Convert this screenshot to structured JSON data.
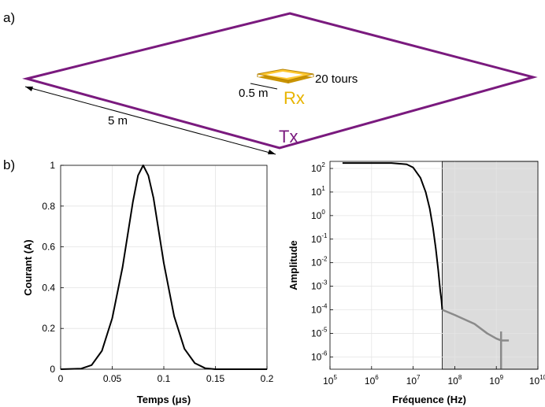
{
  "panel_a": {
    "label": "a)",
    "dimension_label": "5 m",
    "rx": {
      "side_label": "0.5 m",
      "turns_label": "20 tours",
      "name": "Rx"
    },
    "tx": {
      "name": "Tx"
    },
    "colors": {
      "tx_loop": "#7a1a7e",
      "rx_loop": "#e8b400"
    }
  },
  "panel_b": {
    "label": "b)"
  },
  "chart_data": [
    {
      "type": "line",
      "xlabel": "Temps (μs)",
      "ylabel": "Courant (A)",
      "xlim": [
        0,
        0.2
      ],
      "ylim": [
        0,
        1
      ],
      "xticks": [
        "0",
        "0.05",
        "0.1",
        "0.15",
        "0.2"
      ],
      "yticks": [
        "0",
        "0.2",
        "0.4",
        "0.6",
        "0.8",
        "1"
      ],
      "grid": true,
      "series": [
        {
          "color": "#000000",
          "x": [
            0,
            0.02,
            0.03,
            0.04,
            0.05,
            0.06,
            0.07,
            0.075,
            0.08,
            0.085,
            0.09,
            0.1,
            0.11,
            0.12,
            0.13,
            0.14,
            0.15,
            0.2
          ],
          "y": [
            0,
            0.003,
            0.02,
            0.09,
            0.25,
            0.5,
            0.82,
            0.95,
            1.0,
            0.95,
            0.84,
            0.52,
            0.26,
            0.1,
            0.03,
            0.005,
            0,
            0
          ]
        }
      ]
    },
    {
      "type": "line",
      "xlabel": "Fréquence (Hz)",
      "ylabel": "Amplitude",
      "xscale": "log",
      "yscale": "log",
      "xlim": [
        100000,
        10000000000
      ],
      "ylim": [
        3e-07,
        200
      ],
      "xticks": [
        {
          "base": "10",
          "exp": "5"
        },
        {
          "base": "10",
          "exp": "6"
        },
        {
          "base": "10",
          "exp": "7"
        },
        {
          "base": "10",
          "exp": "8"
        },
        {
          "base": "10",
          "exp": "9"
        },
        {
          "base": "10",
          "exp": "10"
        }
      ],
      "yticks": [
        {
          "base": "10",
          "exp": "2"
        },
        {
          "base": "10",
          "exp": "1"
        },
        {
          "base": "10",
          "exp": "0"
        },
        {
          "base": "10",
          "exp": "-1"
        },
        {
          "base": "10",
          "exp": "-2"
        },
        {
          "base": "10",
          "exp": "-3"
        },
        {
          "base": "10",
          "exp": "-4"
        },
        {
          "base": "10",
          "exp": "-5"
        },
        {
          "base": "10",
          "exp": "-6"
        }
      ],
      "grid": true,
      "shaded_region": {
        "x_from": 50000000,
        "x_to": 10000000000,
        "color": "#dcdcdc"
      },
      "series": [
        {
          "color": "#000000",
          "x": [
            200000,
            1000000,
            3000000,
            7000000,
            10000000,
            15000000,
            20000000,
            25000000,
            30000000,
            35000000,
            40000000,
            45000000,
            48000000,
            50000000
          ],
          "y": [
            170,
            170,
            170,
            150,
            110,
            40,
            10,
            2,
            0.3,
            0.04,
            0.005,
            0.0006,
            0.00025,
            0.0001
          ]
        },
        {
          "color": "#8a8a8a",
          "x": [
            50000000,
            100000000,
            300000000,
            600000000,
            1000000000,
            1300000000,
            2000000000
          ],
          "y": [
            0.0001,
            6e-05,
            2.5e-05,
            1e-05,
            6e-06,
            5e-06,
            5e-06
          ]
        }
      ]
    }
  ]
}
